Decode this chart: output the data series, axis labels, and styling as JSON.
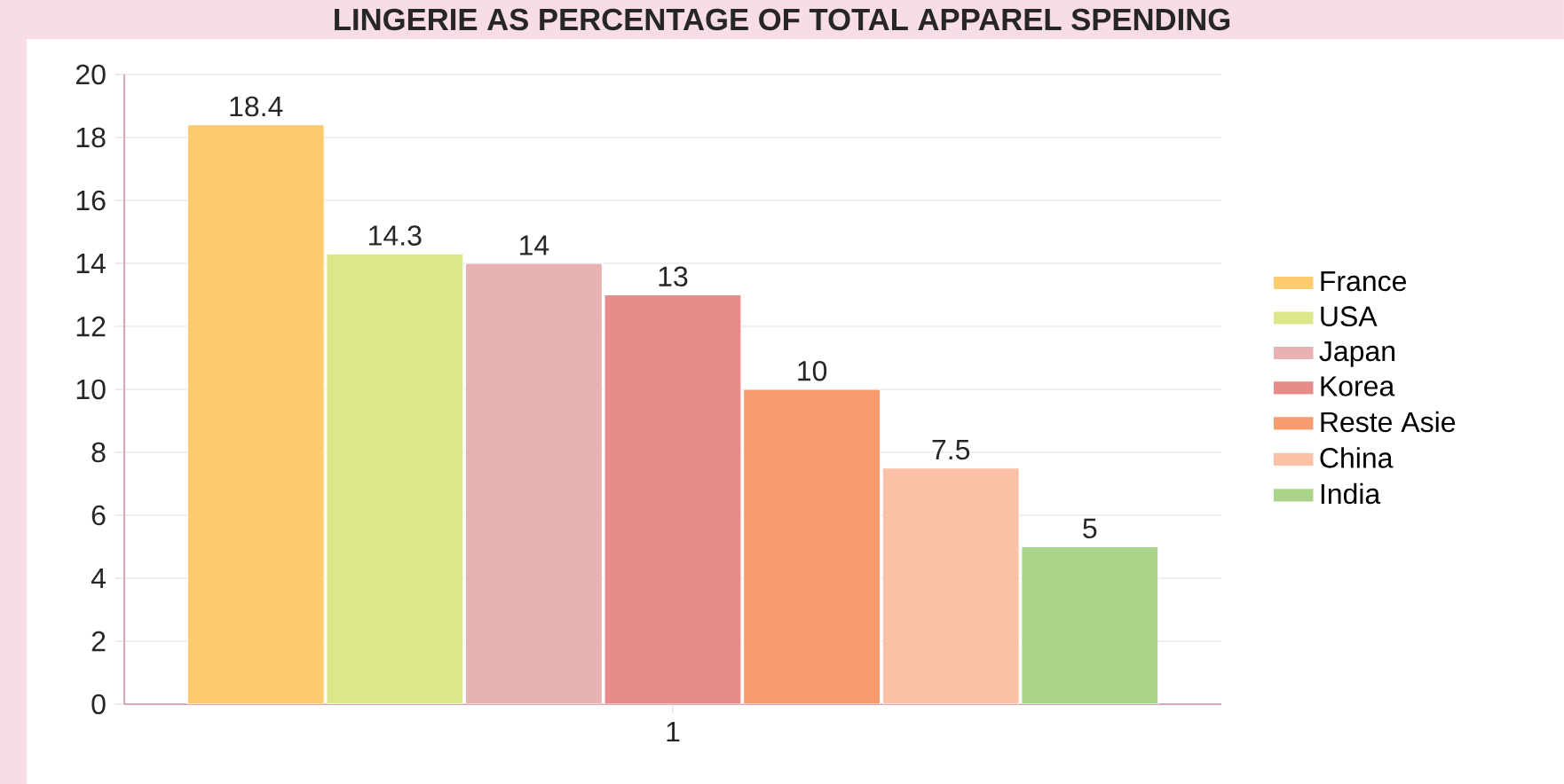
{
  "chart_data": {
    "type": "bar",
    "title": "LINGERIE AS PERCENTAGE OF TOTAL APPAREL SPENDING",
    "categories": [
      "1"
    ],
    "series": [
      {
        "name": "France",
        "color": "#fccb6e",
        "values": [
          18.4
        ],
        "value_labels": [
          "18.4"
        ]
      },
      {
        "name": "USA",
        "color": "#dce68a",
        "values": [
          14.3
        ],
        "value_labels": [
          "14.3"
        ]
      },
      {
        "name": "Japan",
        "color": "#e8b2b2",
        "values": [
          14
        ],
        "value_labels": [
          "14"
        ]
      },
      {
        "name": "Korea",
        "color": "#e68a8a",
        "values": [
          13
        ],
        "value_labels": [
          "13"
        ]
      },
      {
        "name": "Reste Asie",
        "color": "#f89b6e",
        "values": [
          10
        ],
        "value_labels": [
          "10"
        ]
      },
      {
        "name": "China",
        "color": "#fac1a6",
        "values": [
          7.5
        ],
        "value_labels": [
          "7.5"
        ]
      },
      {
        "name": "India",
        "color": "#aad48a",
        "values": [
          5
        ],
        "value_labels": [
          "5"
        ]
      }
    ],
    "ylim": [
      0,
      20
    ],
    "yticks": [
      0,
      2,
      4,
      6,
      8,
      10,
      12,
      14,
      16,
      18,
      20
    ],
    "grid": "y",
    "legend": "right"
  }
}
